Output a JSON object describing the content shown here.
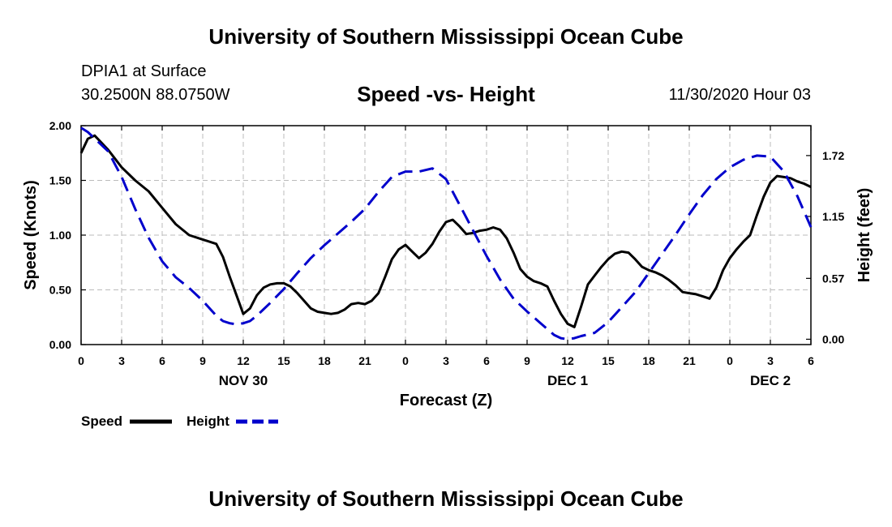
{
  "header": {
    "title": "University of Southern Mississippi Ocean Cube",
    "station": "DPIA1 at Surface",
    "coords": "30.2500N 88.0750W",
    "chart_title": "Speed -vs- Height",
    "datetime": "11/30/2020 Hour 03"
  },
  "footer": {
    "title": "University of Southern Mississippi Ocean Cube"
  },
  "chart_data": {
    "type": "line",
    "title": "Speed -vs- Height",
    "xlabel": "Forecast (Z)",
    "ylabel_left": "Speed (Knots)",
    "ylabel_right": "Height (feet)",
    "xlim": [
      0,
      54
    ],
    "ylim_left": [
      0,
      2.0
    ],
    "ylim_right": [
      -0.05,
      2.0
    ],
    "grid": true,
    "x_ticks": [
      0,
      3,
      6,
      9,
      12,
      15,
      18,
      21,
      24,
      27,
      30,
      33,
      36,
      39,
      42,
      45,
      48,
      51,
      54
    ],
    "x_tick_labels": [
      "0",
      "3",
      "6",
      "9",
      "12",
      "15",
      "18",
      "21",
      "0",
      "3",
      "6",
      "9",
      "12",
      "15",
      "18",
      "21",
      "0",
      "3",
      "6"
    ],
    "left_ticks": [
      0,
      0.5,
      1.0,
      1.5,
      2.0
    ],
    "left_tick_labels": [
      "0.00",
      "0.50",
      "1.00",
      "1.50",
      "2.00"
    ],
    "right_ticks": [
      0,
      0.57,
      1.15,
      1.72
    ],
    "right_tick_labels": [
      "0.00",
      "0.57",
      "1.15",
      "1.72"
    ],
    "day_labels": [
      {
        "x": 12,
        "label": "NOV 30"
      },
      {
        "x": 36,
        "label": "DEC 1"
      },
      {
        "x": 51,
        "label": "DEC 2"
      }
    ],
    "legend_position": "bottom-left",
    "series": [
      {
        "name": "Speed",
        "axis": "left",
        "color": "#000000",
        "style": "solid",
        "x": [
          0,
          0.5,
          1,
          2,
          3,
          4,
          5,
          6,
          7,
          8,
          9,
          10,
          10.5,
          11,
          11.5,
          12,
          12.5,
          13,
          13.5,
          14,
          14.5,
          15,
          15.5,
          16,
          16.5,
          17,
          17.5,
          18,
          18.5,
          19,
          19.5,
          20,
          20.5,
          21,
          21.5,
          22,
          22.5,
          23,
          23.5,
          24,
          24.5,
          25,
          25.5,
          26,
          26.5,
          27,
          27.5,
          28,
          28.5,
          29,
          29.5,
          30,
          30.5,
          31,
          31.5,
          32,
          32.5,
          33,
          33.5,
          34,
          34.5,
          35,
          35.5,
          36,
          36.5,
          37,
          37.5,
          38,
          38.5,
          39,
          39.5,
          40,
          40.5,
          41,
          41.5,
          42,
          42.5,
          43,
          43.5,
          44,
          44.5,
          45,
          45.5,
          46,
          46.5,
          47,
          47.5,
          48,
          48.5,
          49,
          49.5,
          50,
          50.5,
          51,
          51.5,
          52,
          52.5,
          53,
          53.5,
          54
        ],
        "values": [
          1.75,
          1.88,
          1.91,
          1.78,
          1.62,
          1.5,
          1.4,
          1.25,
          1.1,
          1.0,
          0.96,
          0.92,
          0.8,
          0.62,
          0.45,
          0.28,
          0.33,
          0.45,
          0.52,
          0.55,
          0.56,
          0.56,
          0.53,
          0.47,
          0.4,
          0.33,
          0.3,
          0.29,
          0.28,
          0.29,
          0.32,
          0.37,
          0.38,
          0.37,
          0.4,
          0.47,
          0.62,
          0.78,
          0.87,
          0.91,
          0.85,
          0.79,
          0.84,
          0.92,
          1.03,
          1.12,
          1.14,
          1.08,
          1.01,
          1.02,
          1.04,
          1.05,
          1.07,
          1.05,
          0.97,
          0.84,
          0.69,
          0.62,
          0.58,
          0.56,
          0.53,
          0.4,
          0.28,
          0.19,
          0.16,
          0.35,
          0.55,
          0.63,
          0.71,
          0.78,
          0.83,
          0.85,
          0.84,
          0.78,
          0.71,
          0.68,
          0.66,
          0.63,
          0.59,
          0.54,
          0.48,
          0.47,
          0.46,
          0.44,
          0.42,
          0.52,
          0.68,
          0.79,
          0.87,
          0.94,
          1.0,
          1.18,
          1.35,
          1.48,
          1.54,
          1.53,
          1.52,
          1.49,
          1.47,
          1.44
        ]
      },
      {
        "name": "Height",
        "axis": "right",
        "color": "#0000cc",
        "style": "dashed",
        "x": [
          0,
          0.5,
          1,
          1.5,
          2,
          3,
          4,
          5,
          6,
          7,
          8,
          9,
          10,
          10.5,
          11,
          11.5,
          12,
          12.5,
          13,
          13.5,
          14,
          15,
          16,
          17,
          18,
          19,
          20,
          21,
          22,
          23,
          24,
          25,
          26,
          27,
          28,
          29,
          30,
          31,
          32,
          33,
          34,
          35,
          35.5,
          36,
          36.5,
          37,
          38,
          39,
          40,
          41,
          42,
          43,
          44,
          45,
          46,
          47,
          48,
          49,
          50,
          51,
          52,
          53,
          54
        ],
        "values": [
          1.98,
          1.94,
          1.88,
          1.82,
          1.76,
          1.52,
          1.22,
          0.95,
          0.73,
          0.58,
          0.48,
          0.36,
          0.22,
          0.17,
          0.15,
          0.14,
          0.15,
          0.17,
          0.22,
          0.28,
          0.34,
          0.47,
          0.62,
          0.76,
          0.88,
          0.99,
          1.1,
          1.22,
          1.38,
          1.52,
          1.57,
          1.57,
          1.6,
          1.5,
          1.26,
          1.02,
          0.78,
          0.56,
          0.38,
          0.26,
          0.15,
          0.04,
          0.01,
          0.0,
          0.01,
          0.03,
          0.06,
          0.16,
          0.3,
          0.44,
          0.62,
          0.8,
          0.98,
          1.17,
          1.35,
          1.5,
          1.61,
          1.68,
          1.72,
          1.71,
          1.57,
          1.34,
          1.05
        ]
      }
    ]
  }
}
